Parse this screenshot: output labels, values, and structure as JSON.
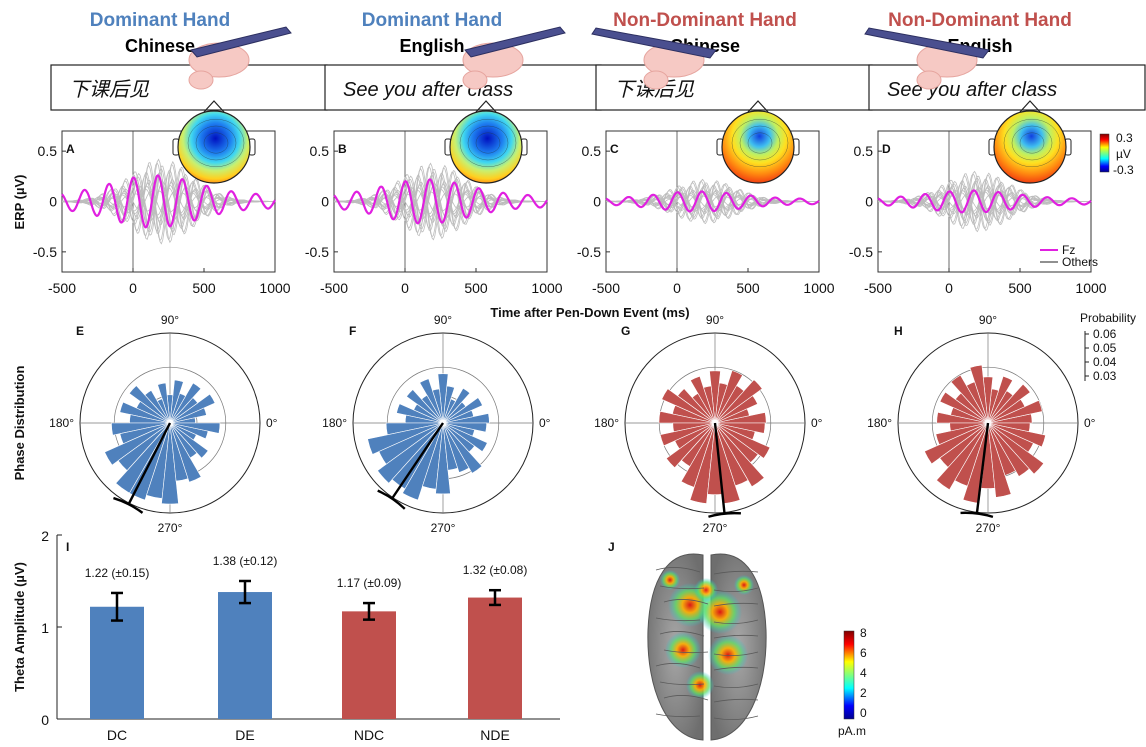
{
  "columns": [
    {
      "hand": "Dominant Hand",
      "language": "Chinese",
      "sample": "下课后见",
      "hand_color": "#4f81bd"
    },
    {
      "hand": "Dominant Hand",
      "language": "English",
      "sample": "See you after class",
      "hand_color": "#4f81bd"
    },
    {
      "hand": "Non-Dominant Hand",
      "language": "Chinese",
      "sample": "下课后见",
      "hand_color": "#c0504d"
    },
    {
      "hand": "Non-Dominant Hand",
      "language": "English",
      "sample": "See you after class",
      "hand_color": "#c0504d"
    }
  ],
  "chart_data": [
    {
      "type": "line",
      "panels": [
        "A",
        "B",
        "C",
        "D"
      ],
      "ylabel": "ERP (µV)",
      "xlabel": "Time after Pen-Down Event (ms)",
      "xlim": [
        -500,
        1000
      ],
      "ylim": [
        -0.7,
        0.7
      ],
      "xticks": [
        "-500",
        "0",
        "500",
        "1000"
      ],
      "yticks": [
        "0.5",
        "0",
        "-0.5"
      ],
      "legend": [
        "Fz",
        "Others"
      ],
      "colors": {
        "fz": "#e020e0",
        "others": "#bdbdbd"
      },
      "topo_colorbar": {
        "max": "0.3",
        "unit": "µV",
        "min": "-0.3"
      },
      "fz_theta_amplitude": [
        0.26,
        0.22,
        0.1,
        0.11
      ]
    },
    {
      "type": "polar-histogram",
      "panels": [
        "E",
        "F",
        "G",
        "H"
      ],
      "ylabel": "Phase Distribution",
      "angle_labels": [
        "90°",
        "180°",
        "0°",
        "270°"
      ],
      "radial_label": "Probability",
      "radial_ticks": [
        "0.06",
        "0.05",
        "0.04",
        "0.03"
      ],
      "mean_phase_deg": [
        243,
        236,
        276,
        263
      ],
      "colors": [
        "#4f81bd",
        "#4f81bd",
        "#c0504d",
        "#c0504d"
      ]
    },
    {
      "type": "bar",
      "panel": "I",
      "categories": [
        "DC",
        "DE",
        "NDC",
        "NDE"
      ],
      "values": [
        1.22,
        1.38,
        1.17,
        1.32
      ],
      "errors": [
        0.15,
        0.12,
        0.09,
        0.08
      ],
      "value_labels": [
        "1.22 (±0.15)",
        "1.38 (±0.12)",
        "1.17 (±0.09)",
        "1.32 (±0.08)"
      ],
      "colors": [
        "#4f81bd",
        "#4f81bd",
        "#c0504d",
        "#c0504d"
      ],
      "ylabel": "Theta Amplitude (µV)",
      "ylim": [
        0,
        2
      ],
      "yticks": [
        "0",
        "1",
        "2"
      ]
    },
    {
      "type": "brain-map",
      "panel": "J",
      "colorbar_ticks": [
        "8",
        "6",
        "4",
        "2",
        "0"
      ],
      "colorbar_unit": "pA.m"
    }
  ]
}
